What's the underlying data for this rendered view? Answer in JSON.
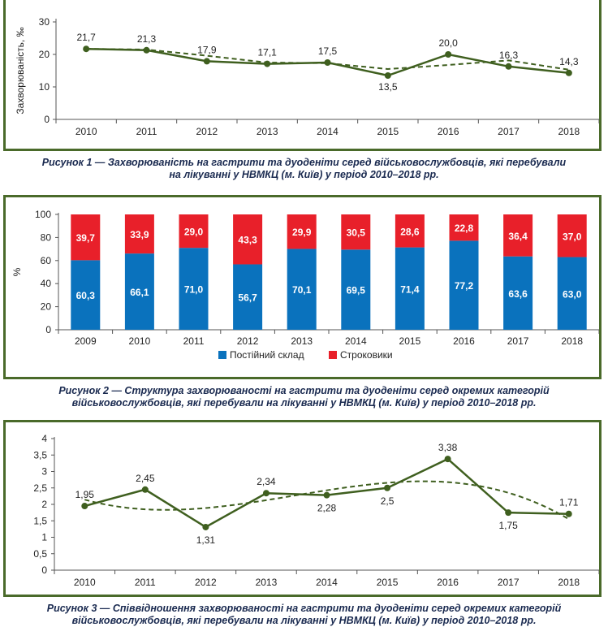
{
  "colors": {
    "frame": "#4a6a2a",
    "line": "#3f5f1f",
    "permanent": "#0a72bd",
    "conscripts": "#e8202a"
  },
  "figure1": {
    "caption_line1": "Рисунок 1 — Захворюваність на гастрити та дуоденіти серед військовослужбовців, які перебували",
    "caption_line2": "на лікуванні у НВМКЦ (м. Київ) у період 2010–2018 рр.",
    "chart_data": {
      "type": "line",
      "categories": [
        "2010",
        "2011",
        "2012",
        "2013",
        "2014",
        "2015",
        "2016",
        "2017",
        "2018"
      ],
      "values": [
        21.7,
        21.3,
        17.9,
        17.1,
        17.5,
        13.5,
        20.0,
        16.3,
        14.3
      ],
      "value_labels": [
        "21,7",
        "21,3",
        "17,9",
        "17,1",
        "17,5",
        "13,5",
        "20,0",
        "16,3",
        "14,3"
      ],
      "ylabel": "Захворюваність, ‰",
      "ylim": [
        0,
        30
      ],
      "yticks": [
        "0",
        "10",
        "20",
        "30"
      ],
      "trendline": "dashed",
      "grid": false
    }
  },
  "figure2": {
    "caption_line1": "Рисунок 2 — Структура захворюваності на гастрити та дуоденіти серед окремих категорій",
    "caption_line2": "військовослужбовців, які перебували на лікуванні у НВМКЦ (м. Київ) у період 2010–2018 рр.",
    "chart_data": {
      "type": "bar",
      "stacked": true,
      "categories": [
        "2009",
        "2010",
        "2011",
        "2012",
        "2013",
        "2014",
        "2015",
        "2016",
        "2017",
        "2018"
      ],
      "series": [
        {
          "name": "Постійний склад",
          "values": [
            60.3,
            66.1,
            71.0,
            56.7,
            70.1,
            69.5,
            71.4,
            77.2,
            63.6,
            63.0
          ],
          "labels": [
            "60,3",
            "66,1",
            "71,0",
            "56,7",
            "70,1",
            "69,5",
            "71,4",
            "77,2",
            "63,6",
            "63,0"
          ]
        },
        {
          "name": "Строковики",
          "values": [
            39.7,
            33.9,
            29.0,
            43.3,
            29.9,
            30.5,
            28.6,
            22.8,
            36.4,
            37.0
          ],
          "labels": [
            "39,7",
            "33,9",
            "29,0",
            "43,3",
            "29,9",
            "30,5",
            "28,6",
            "22,8",
            "36,4",
            "37,0"
          ]
        }
      ],
      "ylabel": "%",
      "ylim": [
        0,
        100
      ],
      "yticks": [
        "0",
        "20",
        "40",
        "60",
        "80",
        "100"
      ],
      "legend_position": "bottom",
      "grid": false
    }
  },
  "figure3": {
    "caption_line1": "Рисунок 3 — Співвідношення захворюваності на гастрити та дуоденіти серед окремих категорій",
    "caption_line2": "військовослужбовців, які перебували на лікуванні у НВМКЦ (м. Київ) у період 2010–2018 рр.",
    "chart_data": {
      "type": "line",
      "categories": [
        "2010",
        "2011",
        "2012",
        "2013",
        "2014",
        "2015",
        "2016",
        "2017",
        "2018"
      ],
      "values": [
        1.95,
        2.45,
        1.31,
        2.34,
        2.28,
        2.5,
        3.38,
        1.75,
        1.71
      ],
      "value_labels": [
        "1,95",
        "2,45",
        "1,31",
        "2,34",
        "2,28",
        "2,5",
        "3,38",
        "1,75",
        "1,71"
      ],
      "ylim": [
        0,
        4
      ],
      "yticks": [
        "0",
        "0,5",
        "1",
        "1,5",
        "2",
        "2,5",
        "3",
        "3,5",
        "4"
      ],
      "trendline": "dashed polynomial",
      "grid": false
    }
  }
}
